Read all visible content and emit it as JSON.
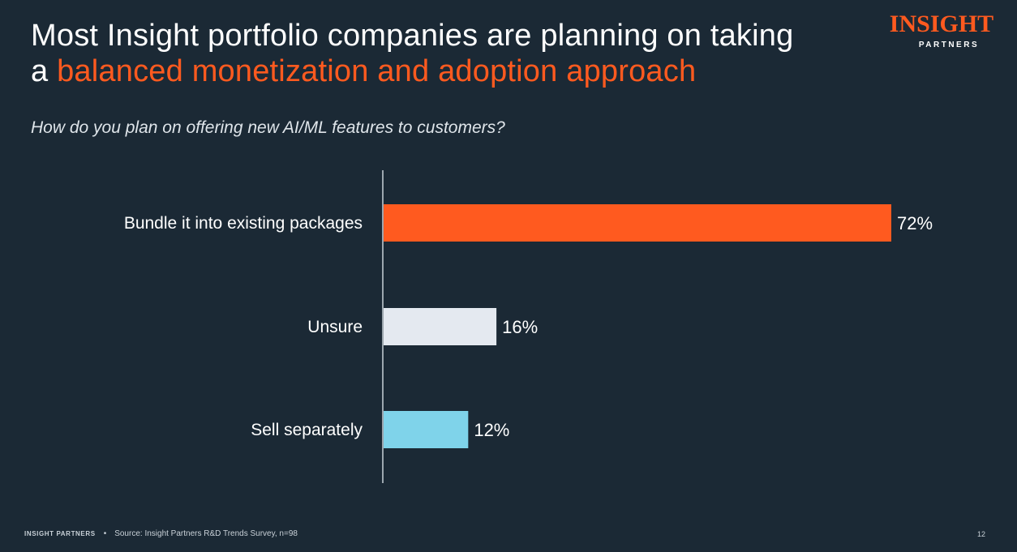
{
  "headline": {
    "line1": "Most Insight portfolio companies are planning on taking",
    "line2_prefix": "a ",
    "line2_accent": "balanced monetization and adoption approach"
  },
  "logo": {
    "word": "INSIGHT",
    "sub": "PARTNERS"
  },
  "question": "How do you plan on offering new AI/ML features to customers?",
  "footer": {
    "brand": "INSIGHT PARTNERS",
    "separator": "•",
    "source": "Source: Insight Partners R&D Trends Survey, n=98",
    "page": "12"
  },
  "colors": {
    "background": "#1b2935",
    "accent": "#ff5a1f",
    "unsure": "#e4e9f0",
    "separately": "#7fd3ea",
    "axis": "#c8cfd6"
  },
  "chart_data": {
    "type": "bar",
    "orientation": "horizontal",
    "title": "How do you plan on offering new AI/ML features to customers?",
    "categories": [
      "Bundle it into existing packages",
      "Unsure",
      "Sell separately"
    ],
    "values": [
      72,
      16,
      12
    ],
    "value_labels": [
      "72%",
      "16%",
      "12%"
    ],
    "bar_colors": [
      "#ff5a1f",
      "#e4e9f0",
      "#7fd3ea"
    ],
    "unit": "%",
    "xlim": [
      0,
      100
    ],
    "grid": false,
    "legend": "none"
  }
}
